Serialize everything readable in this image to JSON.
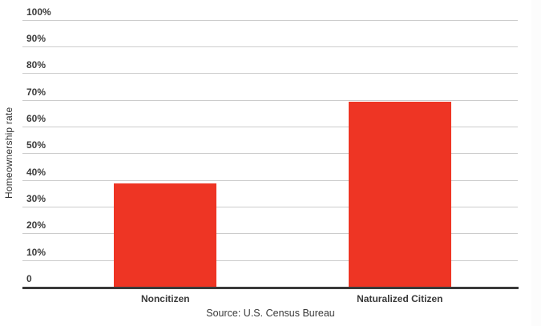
{
  "chart_data": {
    "type": "bar",
    "categories": [
      "Noncitizen",
      "Naturalized Citizen"
    ],
    "values": [
      38.8,
      69.2
    ],
    "title": "",
    "xlabel": "",
    "ylabel": "Homeownership rate",
    "ylim": [
      0,
      100
    ],
    "ytick_step": 10,
    "ytick_labels": [
      "0",
      "10%",
      "20%",
      "30%",
      "40%",
      "50%",
      "60%",
      "70%",
      "80%",
      "90%",
      "100%"
    ],
    "grid": true,
    "legend": "none",
    "source": "Source: U.S. Census Bureau",
    "colors": {
      "bar": "#ee3524",
      "gridline": "#cccccc",
      "axis": "#3a3a3a",
      "tick_text": "#3d3d3d",
      "label_text": "#3a3a3a",
      "background": "#ffffff"
    }
  }
}
